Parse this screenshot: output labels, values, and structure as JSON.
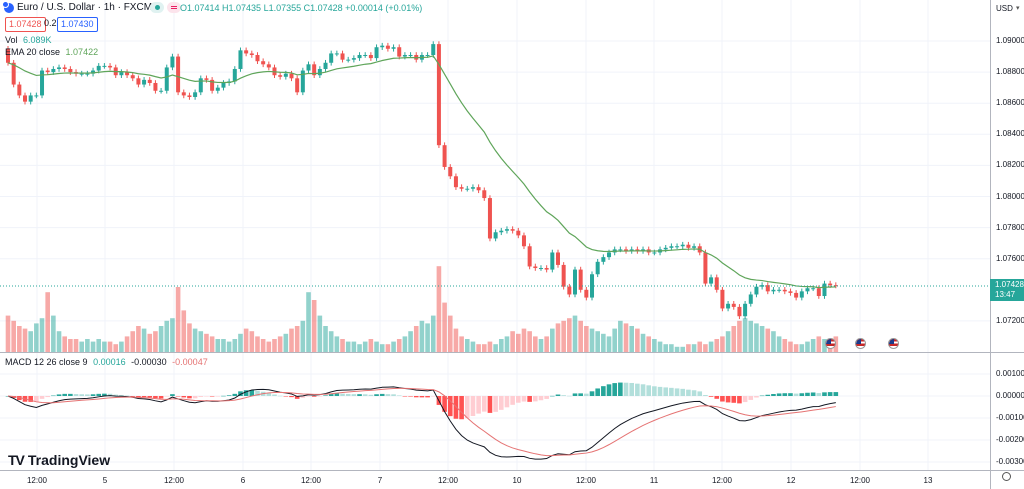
{
  "header": {
    "symbol_title": "Euro / U.S. Dollar · 1h · FXCM",
    "ohlc": "O1.07414 H1.07435 L1.07355 C1.07428 +0.00014 (+0.01%)",
    "bid": "1.07428",
    "spread": "0.2",
    "ask": "1.07430"
  },
  "indicators": {
    "volume_label": "Vol",
    "volume_value": "6.089K",
    "ema_label": "EMA 20 close",
    "ema_value": "1.07422",
    "macd_label": "MACD 12 26 close 9",
    "macd_hist": "0.00016",
    "macd_line": "-0.00030",
    "macd_signal": "-0.00047"
  },
  "price_axis": {
    "currency": "USD",
    "ticks": [
      "1.09000",
      "1.08800",
      "1.08600",
      "1.08400",
      "1.08200",
      "1.08000",
      "1.07800",
      "1.07600",
      "1.07200"
    ],
    "current_price": "1.07428",
    "countdown": "13:47"
  },
  "macd_axis": {
    "ticks": [
      "0.00100",
      "0.00000",
      "-0.00100",
      "-0.00200",
      "-0.00300"
    ]
  },
  "time_axis": {
    "ticks": [
      "12:00",
      "5",
      "12:00",
      "6",
      "12:00",
      "7",
      "12:00",
      "10",
      "12:00",
      "11",
      "12:00",
      "12",
      "12:00",
      "13"
    ]
  },
  "branding": {
    "logo_text": "TradingView"
  },
  "colors": {
    "up": "#26a69a",
    "down": "#ef5350",
    "ema": "#5fa55a",
    "macd": "#131722",
    "signal": "#e57373",
    "accent": "#2962ff"
  },
  "icons": [
    "symbol-logo-icon",
    "market-status-icon",
    "settings-gear-icon",
    "us-flag-event-icon"
  ],
  "chart_data": {
    "type": "candlestick",
    "timeframe": "1h",
    "ylim": [
      1.0716,
      1.0903
    ],
    "grid": true,
    "first_open": 1.0895,
    "close": [
      1.0886,
      1.0872,
      1.0865,
      1.0861,
      1.0865,
      1.0865,
      1.0881,
      1.088,
      1.0882,
      1.0883,
      1.0882,
      1.088,
      1.0879,
      1.0879,
      1.0879,
      1.0881,
      1.0884,
      1.0884,
      1.0883,
      1.0878,
      1.088,
      1.0878,
      1.0876,
      1.0872,
      1.0875,
      1.0873,
      1.0868,
      1.0868,
      1.0883,
      1.089,
      1.0867,
      1.0865,
      1.0864,
      1.0867,
      1.0876,
      1.0875,
      1.0868,
      1.087,
      1.0873,
      1.0874,
      1.0882,
      1.0894,
      1.0892,
      1.0891,
      1.0887,
      1.0885,
      1.0883,
      1.0878,
      1.0877,
      1.0879,
      1.0876,
      1.0867,
      1.0881,
      1.0885,
      1.0878,
      1.0882,
      1.0886,
      1.0892,
      1.0892,
      1.0888,
      1.0888,
      1.0889,
      1.0891,
      1.0891,
      1.0889,
      1.0896,
      1.0897,
      1.0895,
      1.0896,
      1.089,
      1.0891,
      1.0891,
      1.0888,
      1.0891,
      1.0891,
      1.0898,
      1.0833,
      1.0819,
      1.0813,
      1.0806,
      1.0805,
      1.0805,
      1.0806,
      1.0804,
      1.0799,
      1.0773,
      1.0777,
      1.0778,
      1.0779,
      1.0778,
      1.0775,
      1.0768,
      1.0755,
      1.0754,
      1.0754,
      1.0753,
      1.0764,
      1.0756,
      1.0742,
      1.0737,
      1.0753,
      1.074,
      1.0735,
      1.075,
      1.0758,
      1.0761,
      1.0764,
      1.0766,
      1.0766,
      1.0765,
      1.0766,
      1.0765,
      1.0766,
      1.0764,
      1.0764,
      1.0766,
      1.0767,
      1.0768,
      1.0768,
      1.0769,
      1.0767,
      1.0768,
      1.0764,
      1.0744,
      1.0748,
      1.074,
      1.0728,
      1.0731,
      1.0729,
      1.0723,
      1.0731,
      1.0737,
      1.0742,
      1.0743,
      1.0739,
      1.074,
      1.074,
      1.0739,
      1.0738,
      1.0735,
      1.0739,
      1.0741,
      1.0741,
      1.0736,
      1.0744,
      1.0743,
      1.07428
    ],
    "volume_k": [
      14,
      12,
      10,
      9,
      8,
      11,
      13,
      23,
      14,
      8,
      6,
      5,
      5,
      4,
      5,
      4,
      5,
      4,
      4,
      3,
      4,
      6,
      8,
      10,
      9,
      7,
      8,
      10,
      12,
      13,
      25,
      16,
      11,
      9,
      8,
      7,
      6,
      5,
      5,
      4,
      5,
      7,
      9,
      8,
      6,
      5,
      4,
      5,
      6,
      7,
      9,
      10,
      12,
      23,
      20,
      14,
      10,
      8,
      6,
      5,
      4,
      4,
      3,
      4,
      5,
      4,
      3,
      3,
      4,
      5,
      6,
      8,
      10,
      12,
      11,
      14,
      33,
      19,
      14,
      9,
      6,
      5,
      4,
      3,
      3,
      4,
      3,
      5,
      6,
      8,
      7,
      9,
      8,
      6,
      5,
      6,
      9,
      11,
      12,
      13,
      14,
      12,
      10,
      9,
      8,
      7,
      6,
      9,
      12,
      11,
      10,
      9,
      7,
      6,
      5,
      4,
      3,
      3,
      2,
      2,
      3,
      3,
      4,
      3,
      4,
      5,
      6,
      8,
      10,
      12,
      13,
      12,
      11,
      10,
      9,
      8,
      6,
      5,
      4,
      3,
      3,
      4,
      5,
      6,
      5,
      4,
      6
    ]
  }
}
